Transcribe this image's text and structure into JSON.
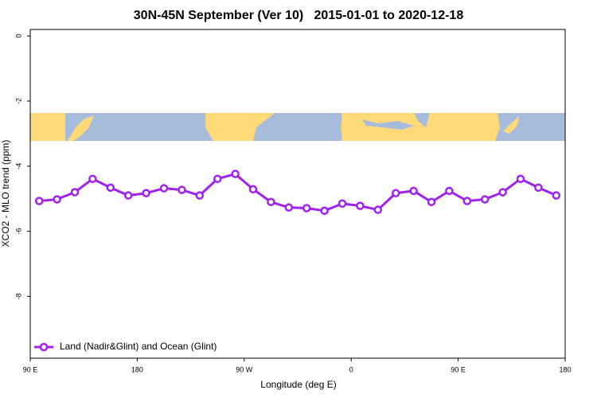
{
  "chart_data": {
    "type": "line",
    "title": "30N-45N September (Ver 10)   2015-01-01 to 2020-12-18",
    "x_label": "Longitude (deg E)",
    "y_label": "XCO2 - MLO trend (ppm)",
    "x": [
      97.5,
      112.5,
      127.5,
      142.5,
      157.5,
      172.5,
      187.5,
      202.5,
      217.5,
      232.5,
      247.5,
      262.5,
      277.5,
      292.5,
      307.5,
      322.5,
      337.5,
      352.5,
      367.5,
      382.5,
      397.5,
      412.5,
      427.5,
      442.5,
      457.5,
      472.5,
      487.5,
      502.5,
      517.5,
      532.5
    ],
    "series": [
      {
        "name": "Land (Nadir&Glint) and Ocean (Glint)",
        "color": "#a020f0",
        "values": [
          -5.07,
          -5.02,
          -4.8,
          -4.39,
          -4.66,
          -4.9,
          -4.83,
          -4.68,
          -4.73,
          -4.9,
          -4.39,
          -4.24,
          -4.71,
          -5.1,
          -5.27,
          -5.29,
          -5.37,
          -5.15,
          -5.22,
          -5.34,
          -4.83,
          -4.76,
          -5.1,
          -4.76,
          -5.07,
          -5.02,
          -4.8,
          -4.39,
          -4.66,
          -4.9
        ]
      }
    ],
    "xlim": [
      90,
      540
    ],
    "xticks": [
      {
        "value": 90,
        "label": "90 E"
      },
      180,
      {
        "value": 270,
        "label": "90 W"
      },
      {
        "value": 360,
        "label": "0"
      },
      {
        "value": 450,
        "label": "90 E"
      },
      {
        "value": 540,
        "label": "180"
      }
    ],
    "ylim": [
      -9.9,
      0.2
    ],
    "yticks": [
      0,
      -2,
      -4,
      -6,
      -8
    ],
    "legend": "bottom-left"
  }
}
